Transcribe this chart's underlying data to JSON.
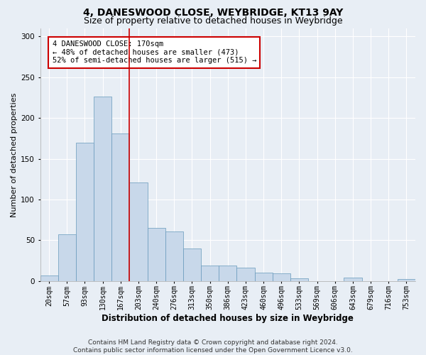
{
  "title": "4, DANESWOOD CLOSE, WEYBRIDGE, KT13 9AY",
  "subtitle": "Size of property relative to detached houses in Weybridge",
  "xlabel": "Distribution of detached houses by size in Weybridge",
  "ylabel": "Number of detached properties",
  "bin_labels": [
    "20sqm",
    "57sqm",
    "93sqm",
    "130sqm",
    "167sqm",
    "203sqm",
    "240sqm",
    "276sqm",
    "313sqm",
    "350sqm",
    "386sqm",
    "423sqm",
    "460sqm",
    "496sqm",
    "533sqm",
    "569sqm",
    "606sqm",
    "643sqm",
    "679sqm",
    "716sqm",
    "753sqm"
  ],
  "bar_heights": [
    7,
    57,
    170,
    226,
    181,
    121,
    65,
    61,
    40,
    19,
    19,
    16,
    10,
    9,
    3,
    0,
    0,
    4,
    0,
    0,
    2
  ],
  "bar_color": "#c8d8ea",
  "bar_edge_color": "#6699bb",
  "vline_x_index": 4,
  "vline_color": "#cc0000",
  "annotation_text": "4 DANESWOOD CLOSE: 170sqm\n← 48% of detached houses are smaller (473)\n52% of semi-detached houses are larger (515) →",
  "annotation_box_color": "#ffffff",
  "annotation_box_edge": "#cc0000",
  "footer_line1": "Contains HM Land Registry data © Crown copyright and database right 2024.",
  "footer_line2": "Contains public sector information licensed under the Open Government Licence v3.0.",
  "ylim": [
    0,
    310
  ],
  "yticks": [
    0,
    50,
    100,
    150,
    200,
    250,
    300
  ],
  "background_color": "#e8eef5",
  "grid_color": "#ffffff",
  "title_fontsize": 10,
  "subtitle_fontsize": 9,
  "xlabel_fontsize": 8.5,
  "ylabel_fontsize": 8,
  "tick_fontsize": 7,
  "annot_fontsize": 7.5,
  "footer_fontsize": 6.5
}
